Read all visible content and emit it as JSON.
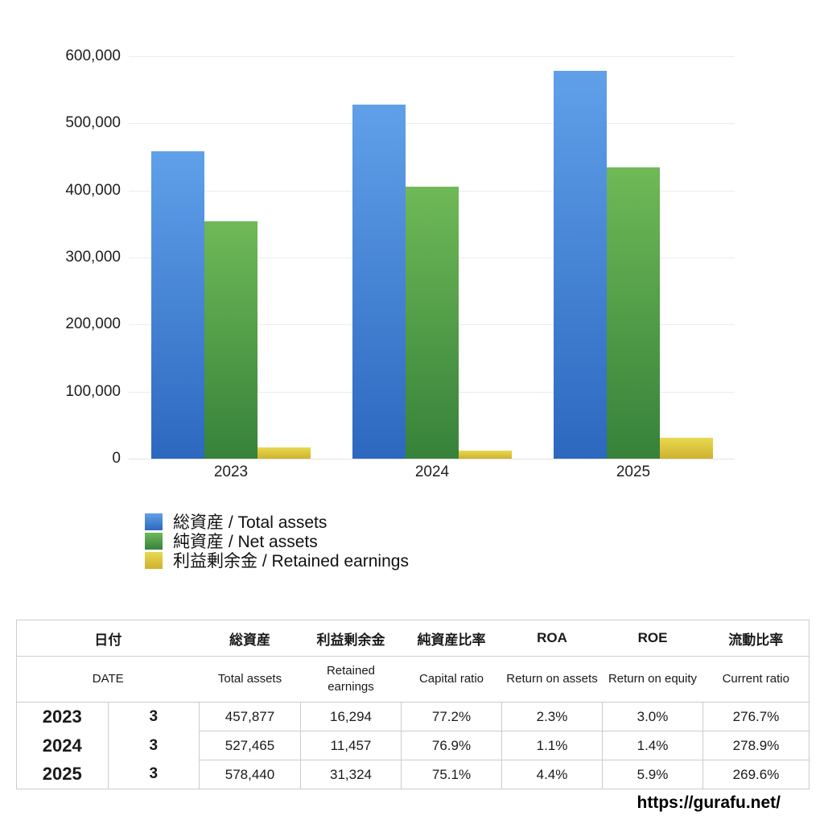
{
  "chart_data": {
    "type": "bar",
    "title": "",
    "categories": [
      "2023",
      "2024",
      "2025"
    ],
    "series": [
      {
        "key": "total-assets",
        "name": "総資産 / Total assets",
        "values": [
          457877,
          527465,
          578440
        ],
        "color_top": "#60a0e9",
        "color_bottom": "#2d68bf"
      },
      {
        "key": "net-assets",
        "name": "純資産 / Net assets",
        "values": [
          353481,
          405621,
          434408
        ],
        "color_top": "#6fb957",
        "color_bottom": "#36823a"
      },
      {
        "key": "retained-earnings",
        "name": "利益剰余金 / Retained earnings",
        "values": [
          16294,
          11457,
          31324
        ],
        "color_top": "#e9d851",
        "color_bottom": "#cfb22d"
      }
    ],
    "ylim": [
      0,
      600000
    ],
    "ytick_step": 100000,
    "ytick_labels": [
      "0",
      "100,000",
      "200,000",
      "300,000",
      "400,000",
      "500,000",
      "600,000"
    ],
    "grid": true,
    "legend_position": "below-left",
    "xlabel": "",
    "ylabel": ""
  },
  "table": {
    "header_jp": {
      "date": "日付",
      "total_assets": "総資産",
      "retained_earnings": "利益剰余金",
      "capital_ratio": "純資産比率",
      "roa": "ROA",
      "roe": "ROE",
      "current_ratio": "流動比率"
    },
    "header_en": {
      "date": "DATE",
      "total_assets": "Total assets",
      "retained_earnings": "Retained earnings",
      "capital_ratio": "Capital ratio",
      "roa": "Return on assets",
      "roe": "Return on equity",
      "current_ratio": "Current ratio"
    },
    "value_keys": [
      "total_assets",
      "retained_earnings",
      "capital_ratio",
      "roa",
      "roe",
      "current_ratio"
    ],
    "rows": [
      {
        "year": "2023",
        "month": "3",
        "total_assets": "457,877",
        "retained_earnings": "16,294",
        "capital_ratio": "77.2%",
        "roa": "2.3%",
        "roe": "3.0%",
        "current_ratio": "276.7%"
      },
      {
        "year": "2024",
        "month": "3",
        "total_assets": "527,465",
        "retained_earnings": "11,457",
        "capital_ratio": "76.9%",
        "roa": "1.1%",
        "roe": "1.4%",
        "current_ratio": "278.9%"
      },
      {
        "year": "2025",
        "month": "3",
        "total_assets": "578,440",
        "retained_earnings": "31,324",
        "capital_ratio": "75.1%",
        "roa": "4.4%",
        "roe": "5.9%",
        "current_ratio": "269.6%"
      }
    ]
  },
  "footer": {
    "url": "https://gurafu.net/"
  }
}
